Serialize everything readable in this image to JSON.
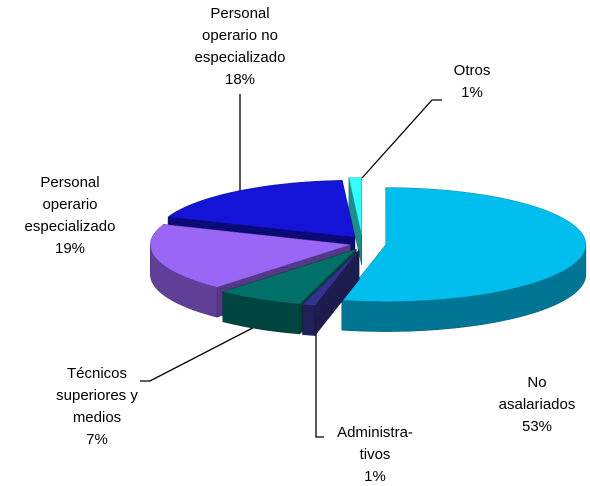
{
  "chart_data": {
    "type": "pie3d",
    "categories": [
      [
        "No",
        "asalariados"
      ],
      [
        "Administra-",
        "tivos"
      ],
      [
        "Técnicos",
        "superiores y",
        "medios"
      ],
      [
        "Personal",
        "operario",
        "especializado"
      ],
      [
        "Personal",
        "operario no",
        "especializado"
      ],
      [
        "Otros"
      ]
    ],
    "values": [
      53,
      1,
      7,
      19,
      18,
      1
    ],
    "value_labels": [
      "53%",
      "1%",
      "7%",
      "19%",
      "18%",
      "1%"
    ],
    "colors": [
      "#00bfee",
      "#33338f",
      "#007068",
      "#9a66f5",
      "#1414d8",
      "#33ffff"
    ]
  }
}
